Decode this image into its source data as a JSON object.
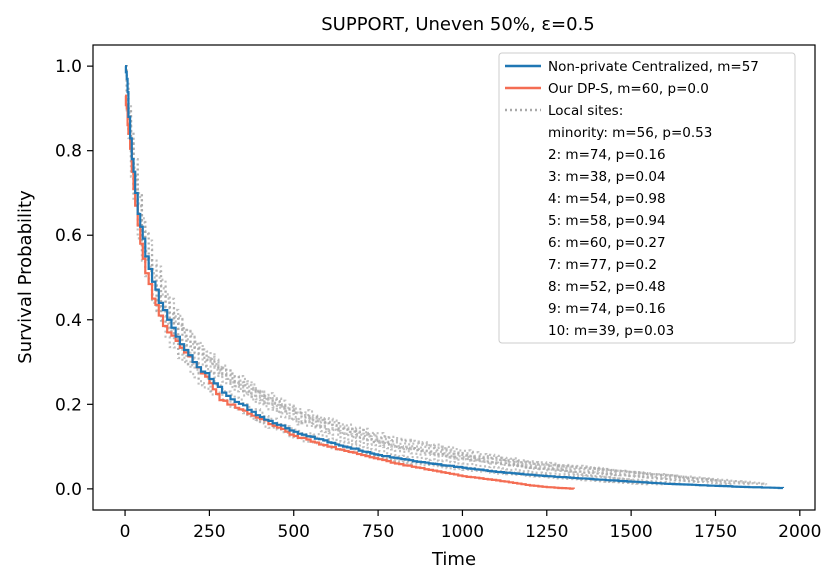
{
  "chart_data": {
    "type": "line",
    "title": "SUPPORT, Uneven 50%, ε=0.5",
    "xlabel": "Time",
    "ylabel": "Survival Probability",
    "xlim": [
      -95,
      2045
    ],
    "ylim": [
      -0.05,
      1.05
    ],
    "xticks": [
      0,
      250,
      500,
      750,
      1000,
      1250,
      1500,
      1750,
      2000
    ],
    "yticks": [
      0.0,
      0.2,
      0.4,
      0.6,
      0.8,
      1.0
    ],
    "xtick_labels": [
      "0",
      "250",
      "500",
      "750",
      "1000",
      "1250",
      "1500",
      "1750",
      "2000"
    ],
    "ytick_labels": [
      "0.0",
      "0.2",
      "0.4",
      "0.6",
      "0.8",
      "1.0"
    ],
    "grid": false,
    "legend_position": "top-right",
    "legend": {
      "nonprivate": "Non-private Centralized, m=57",
      "dps": "Our DP-S, m=60, p=0.0",
      "local_header": "Local sites:",
      "local_entries": [
        "minority: m=56, p=0.53",
        "2: m=74, p=0.16",
        "3: m=38, p=0.04",
        "4: m=54, p=0.98",
        "5: m=58, p=0.94",
        "6: m=60, p=0.27",
        "7: m=77, p=0.2",
        "8: m=52, p=0.48",
        "9: m=74, p=0.16",
        "10: m=39, p=0.03"
      ]
    },
    "series": [
      {
        "name": "Non-private Centralized, m=57",
        "color": "#1f77b4",
        "style": "solid",
        "x": [
          0,
          5,
          10,
          20,
          30,
          45,
          60,
          80,
          100,
          125,
          150,
          200,
          250,
          300,
          400,
          500,
          600,
          750,
          900,
          1000,
          1100,
          1250,
          1400,
          1500,
          1600,
          1750,
          1850,
          1950
        ],
        "y": [
          1.0,
          0.97,
          0.88,
          0.78,
          0.7,
          0.62,
          0.55,
          0.49,
          0.44,
          0.4,
          0.36,
          0.3,
          0.26,
          0.22,
          0.17,
          0.135,
          0.11,
          0.08,
          0.06,
          0.05,
          0.04,
          0.03,
          0.022,
          0.017,
          0.012,
          0.007,
          0.004,
          0.002
        ]
      },
      {
        "name": "Our DP-S, m=60, p=0.0",
        "color": "#f46d53",
        "style": "solid",
        "x": [
          0,
          5,
          10,
          20,
          30,
          45,
          60,
          80,
          100,
          125,
          150,
          200,
          250,
          280,
          350,
          400,
          450,
          500,
          600,
          700,
          800,
          900,
          1000,
          1100,
          1200,
          1250,
          1330
        ],
        "y": [
          0.93,
          0.9,
          0.84,
          0.75,
          0.67,
          0.58,
          0.51,
          0.45,
          0.41,
          0.37,
          0.35,
          0.3,
          0.25,
          0.21,
          0.185,
          0.165,
          0.145,
          0.125,
          0.1,
          0.08,
          0.06,
          0.045,
          0.03,
          0.02,
          0.008,
          0.004,
          0.0
        ]
      }
    ],
    "local_sites": [
      {
        "name": "minority",
        "end": 1500,
        "x": [
          0,
          10,
          25,
          50,
          80,
          120,
          170,
          230,
          300,
          400,
          500,
          650,
          800,
          1000,
          1200,
          1400,
          1500
        ],
        "y": [
          1.0,
          0.86,
          0.72,
          0.58,
          0.48,
          0.41,
          0.34,
          0.29,
          0.25,
          0.2,
          0.16,
          0.12,
          0.09,
          0.07,
          0.05,
          0.03,
          0.02
        ]
      },
      {
        "name": "2",
        "end": 1900,
        "x": [
          0,
          10,
          25,
          50,
          80,
          120,
          170,
          230,
          300,
          400,
          500,
          650,
          800,
          1000,
          1200,
          1500,
          1750,
          1900
        ],
        "y": [
          1.0,
          0.9,
          0.76,
          0.62,
          0.52,
          0.44,
          0.37,
          0.32,
          0.27,
          0.22,
          0.18,
          0.14,
          0.11,
          0.08,
          0.06,
          0.04,
          0.02,
          0.01
        ]
      },
      {
        "name": "3",
        "end": 1600,
        "x": [
          0,
          10,
          25,
          50,
          80,
          120,
          170,
          230,
          300,
          400,
          500,
          650,
          800,
          1000,
          1200,
          1400,
          1600
        ],
        "y": [
          1.0,
          0.84,
          0.7,
          0.56,
          0.46,
          0.38,
          0.31,
          0.25,
          0.21,
          0.16,
          0.13,
          0.1,
          0.07,
          0.05,
          0.035,
          0.02,
          0.01
        ]
      },
      {
        "name": "4",
        "end": 1800,
        "x": [
          0,
          10,
          25,
          50,
          80,
          120,
          170,
          230,
          300,
          400,
          500,
          650,
          800,
          1000,
          1200,
          1500,
          1800
        ],
        "y": [
          1.0,
          0.88,
          0.74,
          0.6,
          0.5,
          0.43,
          0.36,
          0.31,
          0.26,
          0.21,
          0.17,
          0.13,
          0.1,
          0.075,
          0.05,
          0.03,
          0.01
        ]
      },
      {
        "name": "5",
        "end": 1700,
        "x": [
          0,
          10,
          25,
          50,
          80,
          120,
          170,
          230,
          300,
          400,
          500,
          650,
          800,
          1000,
          1200,
          1500,
          1700
        ],
        "y": [
          1.0,
          0.87,
          0.73,
          0.59,
          0.49,
          0.42,
          0.35,
          0.3,
          0.26,
          0.21,
          0.165,
          0.13,
          0.1,
          0.07,
          0.05,
          0.03,
          0.015
        ]
      },
      {
        "name": "6",
        "end": 1850,
        "x": [
          0,
          10,
          25,
          50,
          80,
          120,
          170,
          230,
          300,
          400,
          500,
          650,
          800,
          1000,
          1200,
          1500,
          1850
        ],
        "y": [
          1.0,
          0.89,
          0.75,
          0.61,
          0.51,
          0.44,
          0.37,
          0.31,
          0.27,
          0.22,
          0.18,
          0.14,
          0.1,
          0.08,
          0.055,
          0.035,
          0.01
        ]
      },
      {
        "name": "7",
        "end": 1750,
        "x": [
          0,
          10,
          25,
          50,
          80,
          120,
          170,
          230,
          300,
          400,
          500,
          650,
          800,
          1000,
          1200,
          1500,
          1750
        ],
        "y": [
          1.0,
          0.91,
          0.78,
          0.64,
          0.54,
          0.46,
          0.38,
          0.33,
          0.28,
          0.23,
          0.19,
          0.15,
          0.12,
          0.09,
          0.065,
          0.04,
          0.02
        ]
      },
      {
        "name": "8",
        "end": 1650,
        "x": [
          0,
          10,
          25,
          50,
          80,
          120,
          170,
          230,
          300,
          400,
          500,
          650,
          800,
          1000,
          1200,
          1450,
          1650
        ],
        "y": [
          1.0,
          0.85,
          0.71,
          0.57,
          0.47,
          0.39,
          0.32,
          0.27,
          0.23,
          0.18,
          0.14,
          0.11,
          0.08,
          0.06,
          0.04,
          0.025,
          0.012
        ]
      },
      {
        "name": "9",
        "end": 1900,
        "x": [
          0,
          10,
          25,
          50,
          80,
          120,
          170,
          230,
          300,
          400,
          500,
          650,
          800,
          1000,
          1200,
          1500,
          1900
        ],
        "y": [
          1.0,
          0.9,
          0.77,
          0.63,
          0.53,
          0.45,
          0.38,
          0.32,
          0.28,
          0.23,
          0.185,
          0.145,
          0.115,
          0.085,
          0.06,
          0.04,
          0.012
        ]
      },
      {
        "name": "10",
        "end": 1550,
        "x": [
          0,
          10,
          25,
          50,
          80,
          120,
          170,
          230,
          300,
          400,
          500,
          650,
          800,
          1000,
          1200,
          1400,
          1550
        ],
        "y": [
          1.0,
          0.83,
          0.68,
          0.54,
          0.44,
          0.36,
          0.3,
          0.24,
          0.2,
          0.155,
          0.12,
          0.09,
          0.065,
          0.045,
          0.03,
          0.018,
          0.01
        ]
      }
    ],
    "local_color": "#a9a9a9"
  }
}
